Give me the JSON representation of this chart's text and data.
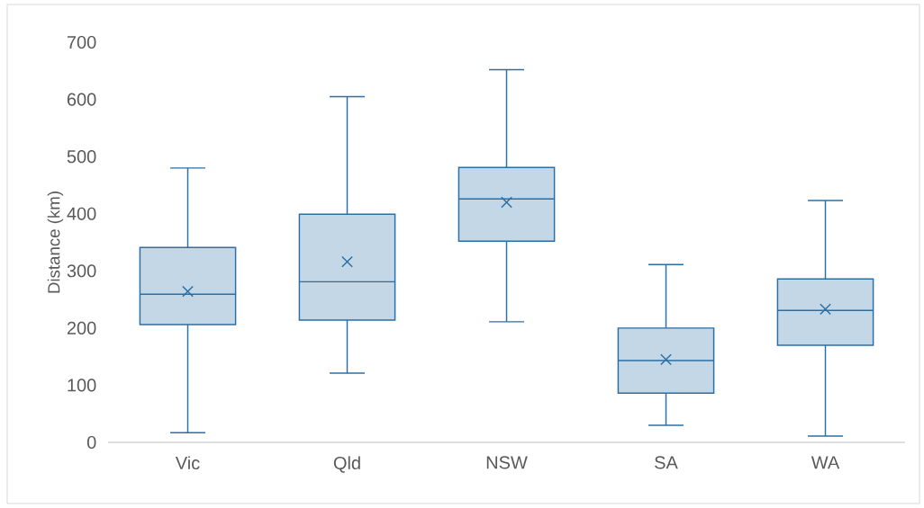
{
  "chart_data": {
    "type": "box",
    "ylabel": "Distance (km)",
    "categories": [
      "Vic",
      "Qld",
      "NSW",
      "SA",
      "WA"
    ],
    "ylim": [
      0,
      700
    ],
    "yticks": [
      0,
      100,
      200,
      300,
      400,
      500,
      600,
      700
    ],
    "series": [
      {
        "color": "#2a6fa5",
        "boxes": [
          {
            "low": 17,
            "q1": 206,
            "median": 259,
            "q3": 341,
            "high": 480,
            "mean": 264
          },
          {
            "low": 121,
            "q1": 214,
            "median": 281,
            "q3": 399,
            "high": 605,
            "mean": 316
          },
          {
            "low": 211,
            "q1": 352,
            "median": 426,
            "q3": 481,
            "high": 652,
            "mean": 420
          },
          {
            "low": 30,
            "q1": 86,
            "median": 143,
            "q3": 200,
            "high": 311,
            "mean": 145
          },
          {
            "low": 11,
            "q1": 170,
            "median": 231,
            "q3": 286,
            "high": 423,
            "mean": 233
          }
        ]
      }
    ]
  }
}
